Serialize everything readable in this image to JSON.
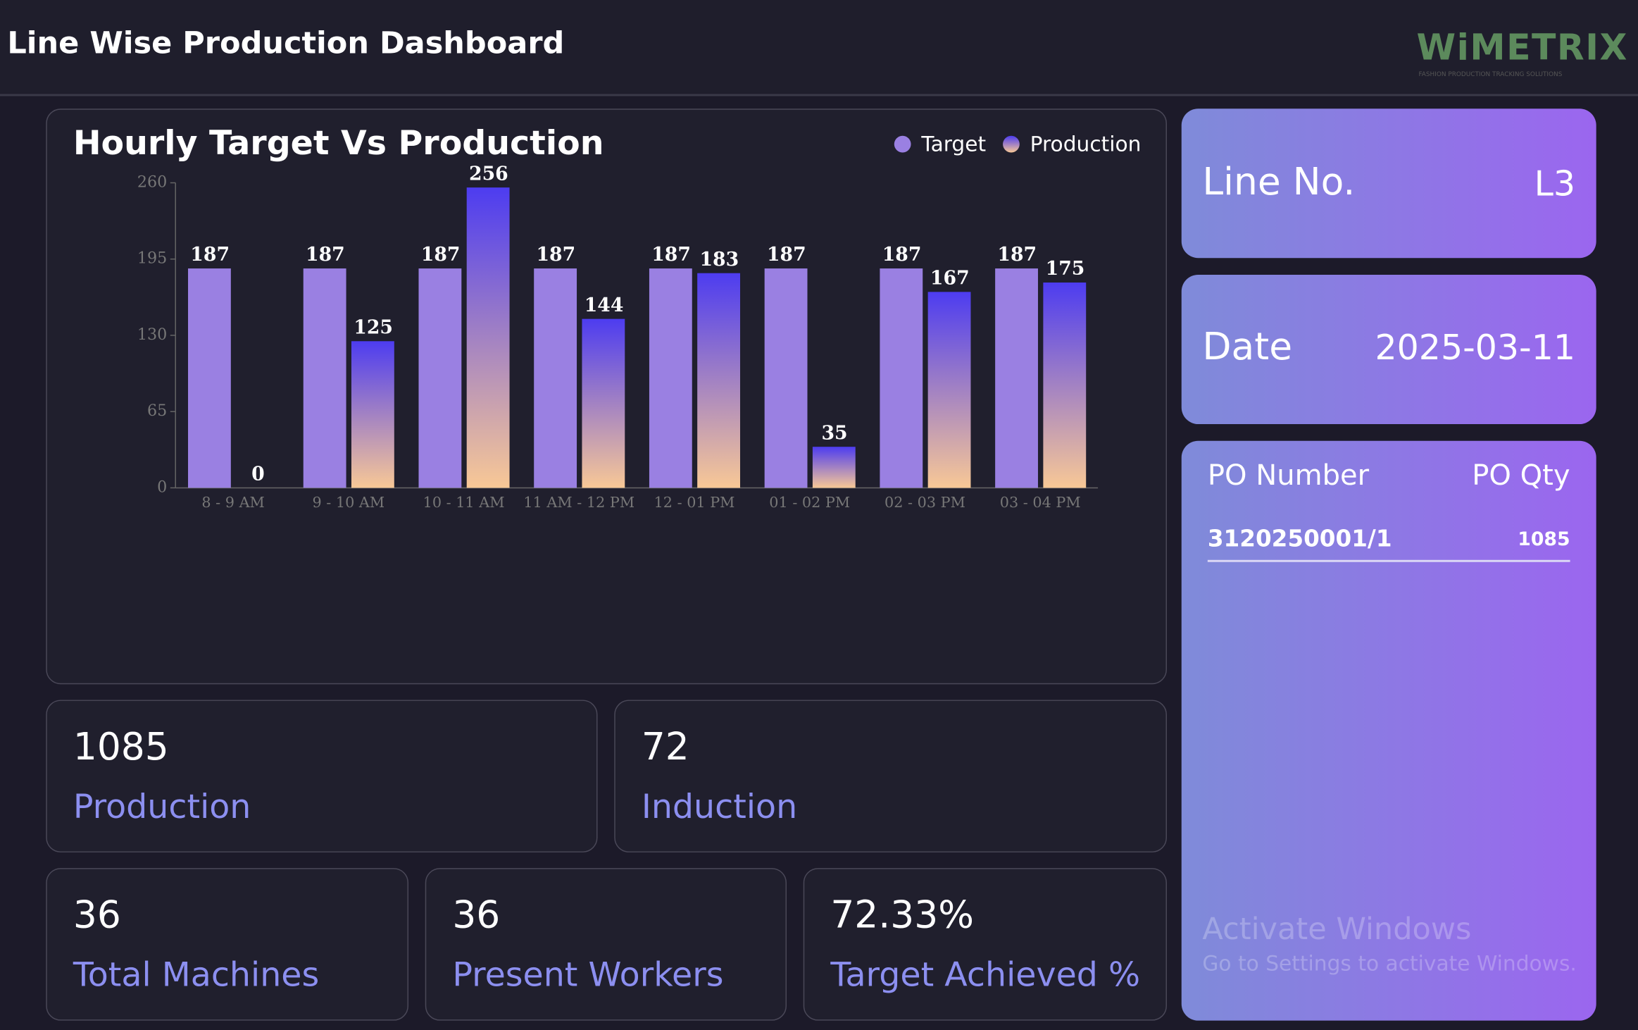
{
  "header": {
    "title": "Line Wise Production Dashboard",
    "logo": "WiMETRIX",
    "tagline": "FASHION PRODUCTION TRACKING SOLUTIONS"
  },
  "chart_data": {
    "type": "bar",
    "title": "Hourly Target Vs Production",
    "categories": [
      "8 - 9 AM",
      "9 - 10 AM",
      "10 - 11 AM",
      "11 AM - 12 PM",
      "12 - 01 PM",
      "01 - 02 PM",
      "02 - 03 PM",
      "03 - 04 PM"
    ],
    "series": [
      {
        "name": "Target",
        "color": "#9a80e2",
        "values": [
          187,
          187,
          187,
          187,
          187,
          187,
          187,
          187
        ]
      },
      {
        "name": "Production",
        "color": "#4d3cf0",
        "values": [
          0,
          125,
          256,
          144,
          183,
          35,
          167,
          175
        ]
      }
    ],
    "ylim": [
      0,
      260
    ],
    "yticks": [
      0,
      65,
      130,
      195,
      260
    ]
  },
  "info": {
    "line": {
      "label": "Line No.",
      "value": "L3"
    },
    "date": {
      "label": "Date",
      "value": "2025-03-11"
    },
    "po": {
      "headers": [
        "PO Number",
        "PO Qty"
      ],
      "rows": [
        [
          "3120250001/1",
          "1085"
        ]
      ]
    }
  },
  "stats": [
    {
      "value": "1085",
      "label": "Production"
    },
    {
      "value": "72",
      "label": "Induction"
    },
    {
      "value": "36",
      "label": "Total Machines"
    },
    {
      "value": "36",
      "label": "Present Workers"
    },
    {
      "value": "72.33%",
      "label": "Target Achieved %"
    }
  ],
  "watermark": {
    "title": "Activate Windows",
    "text": "Go to Settings to activate Windows."
  }
}
